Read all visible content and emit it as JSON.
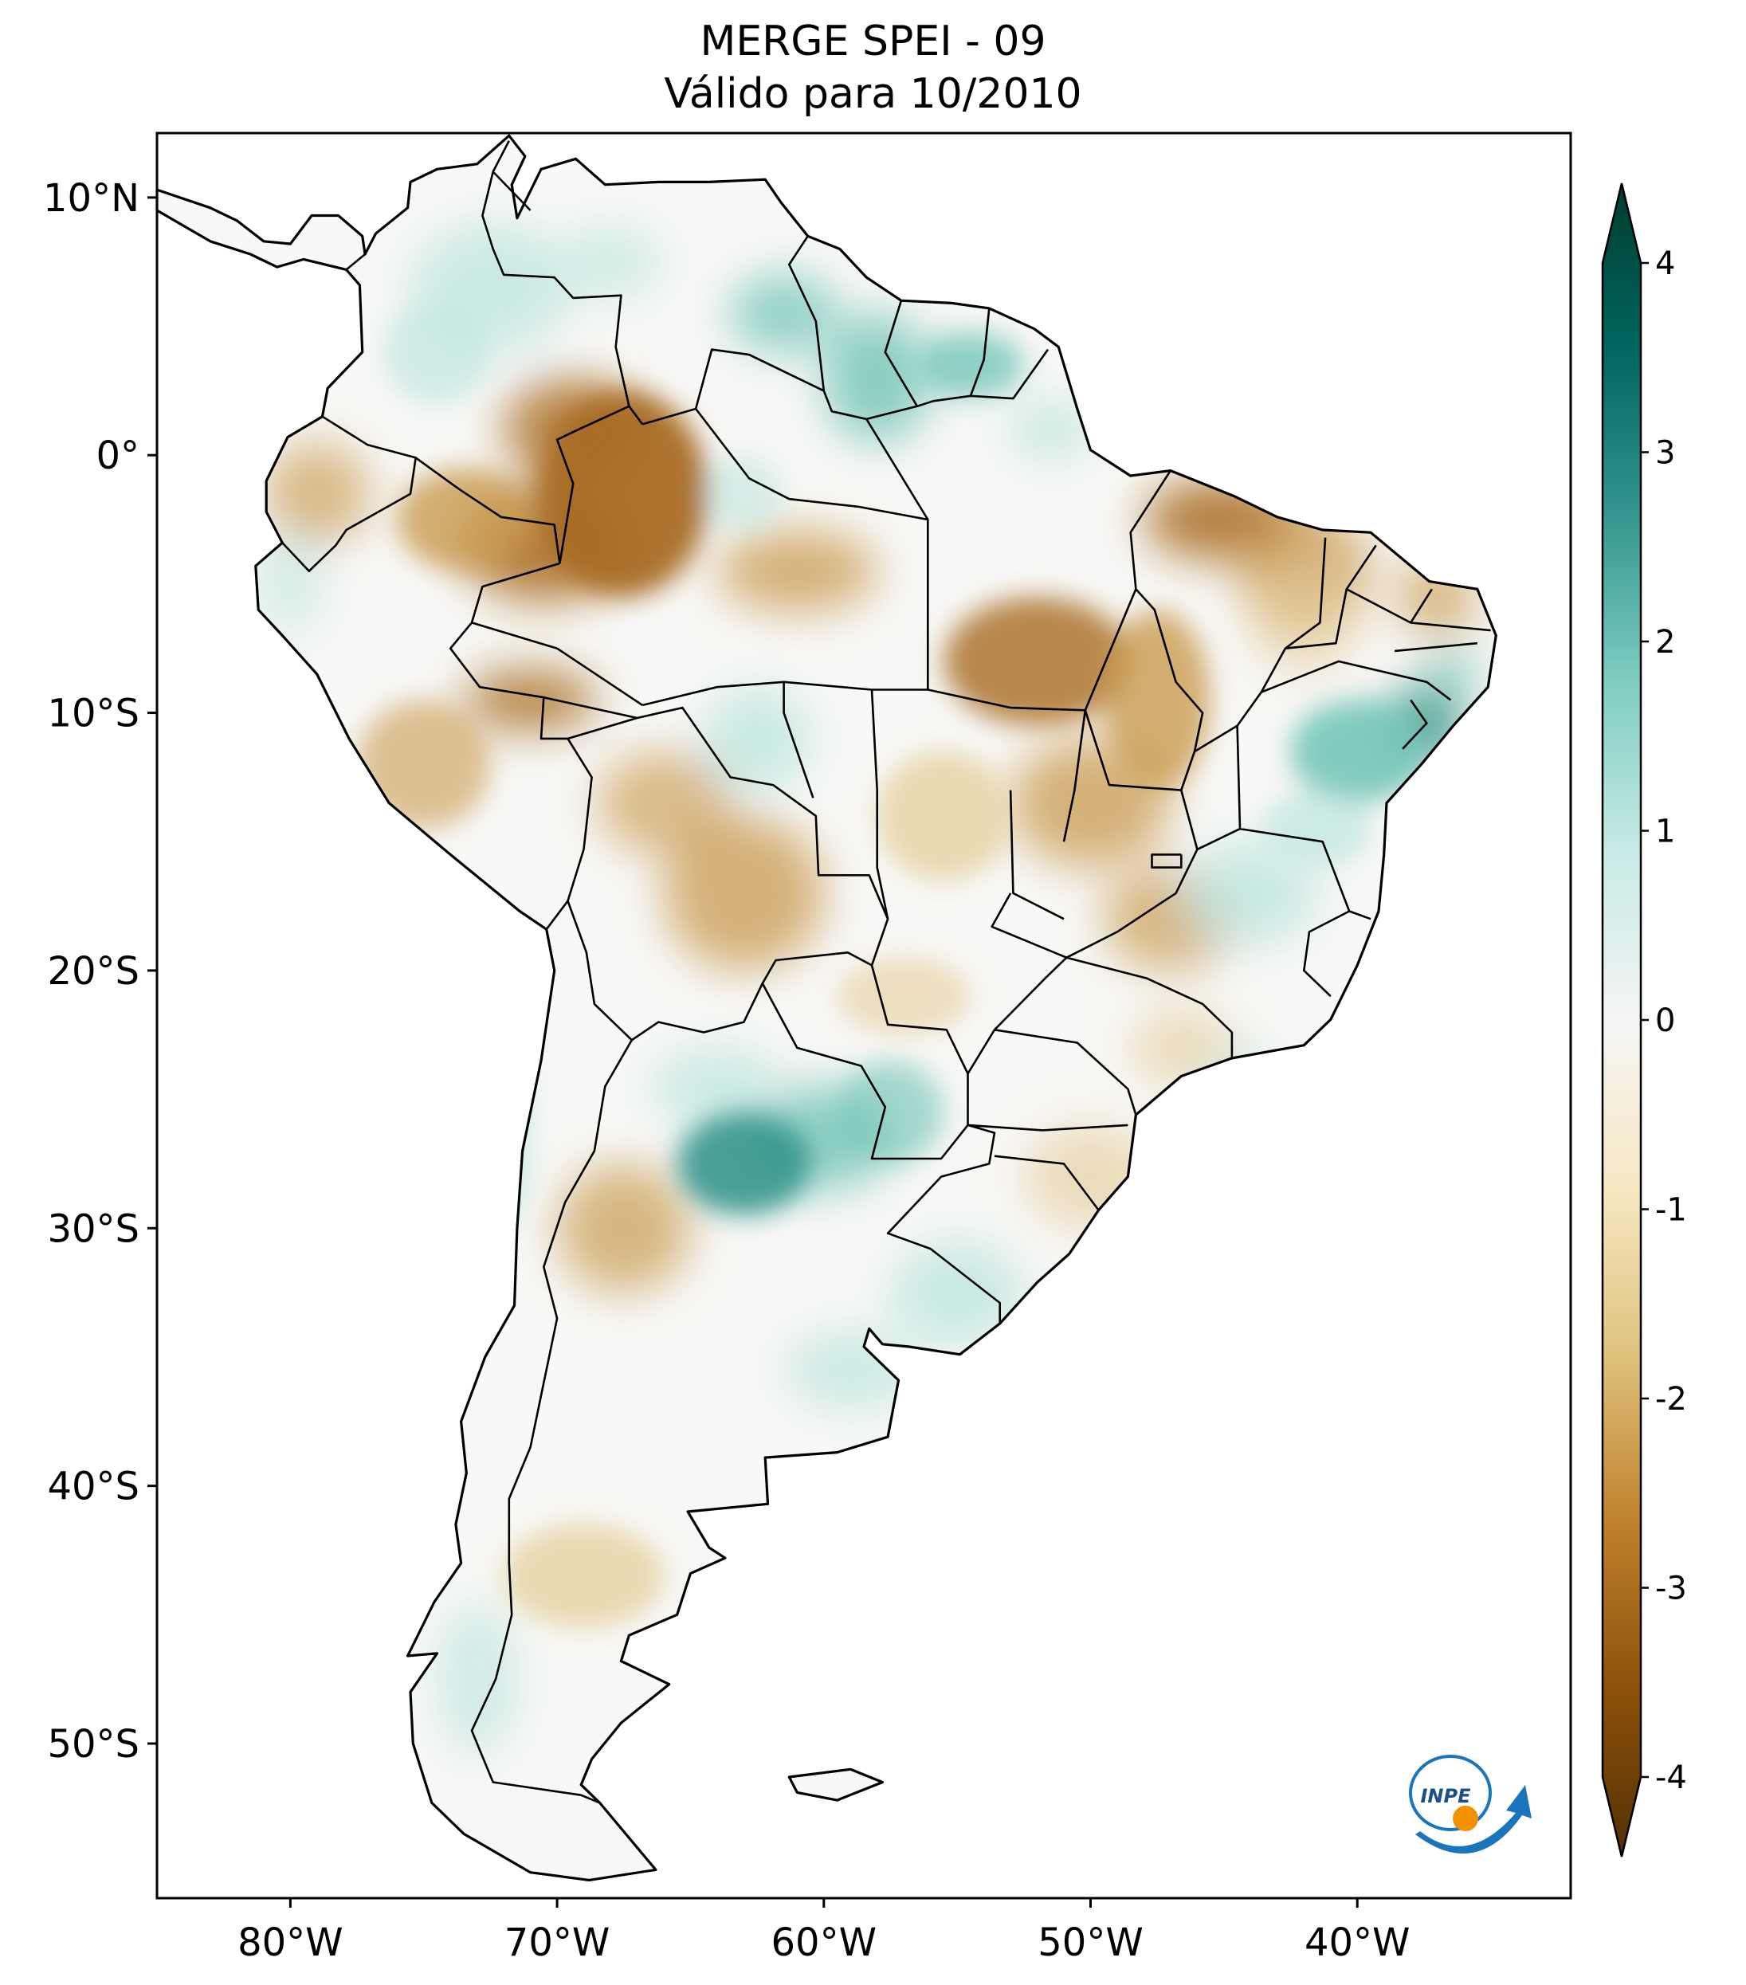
{
  "title": {
    "line1": "MERGE   SPEI - 09",
    "line2": "Válido para 10/2010"
  },
  "map": {
    "extent": {
      "lon_min": -85,
      "lon_max": -32,
      "lat_min": -56,
      "lat_max": 12.5
    },
    "lat_ticks": [
      {
        "value": 10,
        "label": "10°N"
      },
      {
        "value": 0,
        "label": "0°"
      },
      {
        "value": -10,
        "label": "10°S"
      },
      {
        "value": -20,
        "label": "20°S"
      },
      {
        "value": -30,
        "label": "30°S"
      },
      {
        "value": -40,
        "label": "40°S"
      },
      {
        "value": -50,
        "label": "50°S"
      }
    ],
    "lon_ticks": [
      {
        "value": -80,
        "label": "80°W"
      },
      {
        "value": -70,
        "label": "70°W"
      },
      {
        "value": -60,
        "label": "60°W"
      },
      {
        "value": -50,
        "label": "50°W"
      },
      {
        "value": -40,
        "label": "40°W"
      }
    ]
  },
  "colorbar": {
    "min": -4,
    "max": 4,
    "extend": "both",
    "colormap": "BrBG",
    "ticks": [
      {
        "value": 4,
        "label": "4"
      },
      {
        "value": 3,
        "label": "3"
      },
      {
        "value": 2,
        "label": "2"
      },
      {
        "value": 1,
        "label": "1"
      },
      {
        "value": 0,
        "label": "0"
      },
      {
        "value": -1,
        "label": "-1"
      },
      {
        "value": -2,
        "label": "-2"
      },
      {
        "value": -3,
        "label": "-3"
      },
      {
        "value": -4,
        "label": "-4"
      }
    ],
    "colors": [
      "#543005",
      "#8c510a",
      "#bf812d",
      "#dfc27d",
      "#f6e8c3",
      "#f5f5f5",
      "#c7eae5",
      "#80cdc1",
      "#35978f",
      "#01665e",
      "#003c30"
    ]
  },
  "logo": {
    "text": "INPE"
  },
  "colors": {
    "dry_strong": "#a86a22",
    "dry_medium": "#c99a4f",
    "dry_light": "#e6cf9f",
    "wet_light": "#bfe6df",
    "wet_medium": "#6fc3b5",
    "wet_strong": "#2a8f85",
    "neutral": "#f7f7f7"
  }
}
